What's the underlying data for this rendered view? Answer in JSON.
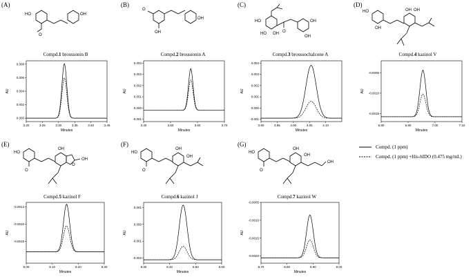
{
  "legend": {
    "solid_label": "Compd. (1 ppm)",
    "dashed_label": "Compd. (1 ppm) +His-hIDO (0.475 mg/mL)"
  },
  "colors": {
    "line": "#000000",
    "background": "#ffffff"
  },
  "chart_data": [
    {
      "type": "line",
      "panel": "(A)",
      "compound_number": "1",
      "title": "broussonin B",
      "xlabel": "Minutes",
      "ylabel": "AU",
      "xlim": [
        3.2,
        3.45
      ],
      "ylim": [
        -0.0005,
        0.0085
      ],
      "xticks": [
        3.2,
        3.25,
        3.3,
        3.35,
        3.4,
        3.45
      ],
      "yticks": [
        0.0,
        0.002,
        0.004,
        0.006,
        0.008
      ],
      "x_tick_labels": [
        "3.20",
        "3.25",
        "3.30",
        "3.35",
        "3.40",
        "3.45"
      ],
      "y_tick_labels": [
        "0.000",
        "0.002",
        "0.004",
        "0.006",
        "0.008"
      ],
      "series": [
        {
          "style": "solid",
          "peak_x": 3.318,
          "peak_y": 0.0081,
          "width": 0.0075,
          "baseline": 0.0
        },
        {
          "style": "dashed",
          "peak_x": 3.318,
          "peak_y": 0.006,
          "width": 0.0075,
          "baseline": 0.0
        }
      ]
    },
    {
      "type": "line",
      "panel": "(B)",
      "compound_number": "2",
      "title": "broussonin A",
      "xlabel": "Minutes",
      "ylabel": "AU",
      "xlim": [
        3.4,
        3.7
      ],
      "ylim": [
        -0.0012,
        0.0042
      ],
      "xticks": [
        3.4,
        3.5,
        3.6,
        3.7
      ],
      "yticks": [
        -0.001,
        0.0,
        0.001,
        0.002,
        0.003,
        0.004
      ],
      "x_tick_labels": [
        "3.40",
        "3.50",
        "3.60",
        "3.70"
      ],
      "y_tick_labels": [
        "-0.001",
        "0.000",
        "0.001",
        "0.002",
        "0.003",
        "0.004"
      ],
      "series": [
        {
          "style": "solid",
          "peak_x": 3.575,
          "peak_y": 0.0035,
          "width": 0.0085,
          "baseline": -0.0002
        },
        {
          "style": "dashed",
          "peak_x": 3.575,
          "peak_y": 0.0025,
          "width": 0.0085,
          "baseline": -0.0002
        }
      ]
    },
    {
      "type": "line",
      "panel": "(C)",
      "compound_number": "3",
      "title": "broussochalcone A",
      "xlabel": "Minutes",
      "ylabel": "AU",
      "xlim": [
        3.9,
        4.15
      ],
      "ylim": [
        -0.0012,
        0.0042
      ],
      "xticks": [
        3.9,
        3.95,
        4.0,
        4.05,
        4.1
      ],
      "yticks": [
        -0.001,
        0.0,
        0.001,
        0.002,
        0.003,
        0.004
      ],
      "x_tick_labels": [
        "3.90",
        "3.95",
        "4.00",
        "4.05",
        "4.10"
      ],
      "y_tick_labels": [
        "-0.001",
        "0.000",
        "0.001",
        "0.002",
        "0.003",
        "0.004"
      ],
      "series": [
        {
          "style": "solid",
          "peak_x": 4.055,
          "peak_y": 0.0038,
          "width": 0.016,
          "baseline": -0.0009
        },
        {
          "style": "dashed",
          "peak_x": 4.055,
          "peak_y": 0.0006,
          "width": 0.016,
          "baseline": -0.0009
        }
      ]
    },
    {
      "type": "line",
      "panel": "(D)",
      "compound_number": "4",
      "title": "kazinol V",
      "xlabel": "Minutes",
      "ylabel": "AU",
      "xlim": [
        6.8,
        7.1
      ],
      "ylim": [
        -0.0017,
        -0.0002
      ],
      "xticks": [
        6.8,
        6.9,
        7.0,
        7.1
      ],
      "yticks": [
        -0.0005,
        -0.001,
        -0.0015
      ],
      "x_tick_labels": [
        "6.80",
        "6.90",
        "7.00",
        "7.10"
      ],
      "y_tick_labels": [
        "-0.0005",
        "-0.0010",
        "-0.0015"
      ],
      "series": [
        {
          "style": "solid",
          "peak_x": 6.955,
          "peak_y": -0.00043,
          "width": 0.011,
          "baseline": -0.00158
        },
        {
          "style": "dashed",
          "peak_x": 6.955,
          "peak_y": -0.00102,
          "width": 0.011,
          "baseline": -0.00158
        }
      ]
    },
    {
      "type": "line",
      "panel": "(E)",
      "compound_number": "5",
      "title": "kazinol F",
      "xlabel": "Minutes",
      "ylabel": "AU",
      "xlim": [
        8.0,
        8.3
      ],
      "ylim": [
        -0.00205,
        -0.00135
      ],
      "xticks": [
        8.0,
        8.1,
        8.2,
        8.3
      ],
      "yticks": [
        -0.0014,
        -0.0016,
        -0.0018
      ],
      "x_tick_labels": [
        "8.00",
        "8.10",
        "8.20",
        "8.30"
      ],
      "y_tick_labels": [
        "-0.0014",
        "-0.0016",
        "-0.0018"
      ],
      "series": [
        {
          "style": "solid",
          "peak_x": 8.155,
          "peak_y": -0.00137,
          "width": 0.012,
          "baseline": -0.00192
        },
        {
          "style": "dashed",
          "peak_x": 8.155,
          "peak_y": -0.00162,
          "width": 0.012,
          "baseline": -0.00192
        }
      ]
    },
    {
      "type": "line",
      "panel": "(F)",
      "compound_number": "6",
      "title": "kazinol J",
      "xlabel": "Minutes",
      "ylabel": "AU",
      "xlim": [
        8.3,
        8.6
      ],
      "ylim": [
        -0.0023,
        0.0013
      ],
      "xticks": [
        8.3,
        8.4,
        8.5,
        8.6
      ],
      "yticks": [
        0.001,
        0.0,
        -0.001,
        -0.002
      ],
      "x_tick_labels": [
        "8.30",
        "8.40",
        "8.50",
        "8.60"
      ],
      "y_tick_labels": [
        "0.001",
        "0.000",
        "-0.001",
        "-0.002"
      ],
      "series": [
        {
          "style": "solid",
          "peak_x": 8.452,
          "peak_y": 0.00115,
          "width": 0.015,
          "baseline": -0.0021
        },
        {
          "style": "dashed",
          "peak_x": 8.452,
          "peak_y": -0.0013,
          "width": 0.015,
          "baseline": -0.0021
        }
      ]
    },
    {
      "type": "line",
      "panel": "(G)",
      "compound_number": "7",
      "title": "kazinol W",
      "xlabel": "Minutes",
      "ylabel": "AU",
      "xlim": [
        8.7,
        9.0
      ],
      "ylim": [
        -0.0022,
        -0.0005
      ],
      "xticks": [
        8.7,
        8.8,
        8.9,
        9.0
      ],
      "yticks": [
        -0.0005,
        -0.001,
        -0.0015,
        -0.002
      ],
      "x_tick_labels": [
        "8.70",
        "8.80",
        "8.90",
        "9.00"
      ],
      "y_tick_labels": [
        "-0.0005",
        "-0.0010",
        "-0.0015",
        "-0.0020"
      ],
      "series": [
        {
          "style": "solid",
          "peak_x": 8.888,
          "peak_y": -0.00085,
          "width": 0.013,
          "baseline": -0.00205
        },
        {
          "style": "dashed",
          "peak_x": 8.888,
          "peak_y": -0.00155,
          "width": 0.013,
          "baseline": -0.00205
        }
      ]
    }
  ]
}
